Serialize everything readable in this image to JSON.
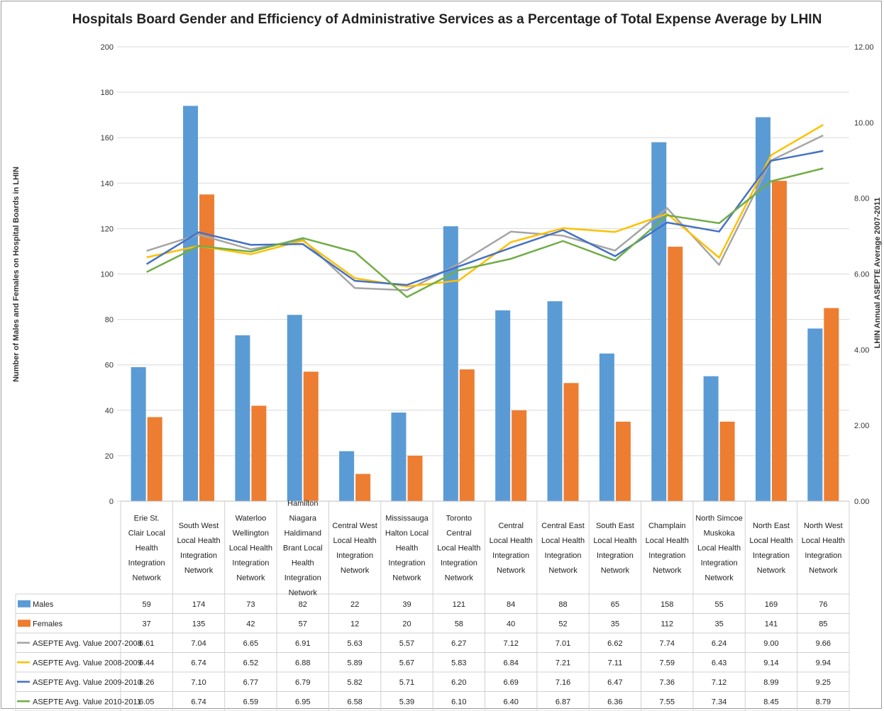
{
  "chart_data": {
    "type": "bar",
    "title": "Hospitals Board Gender and Efficiency of Administrative Services as a Percentage of Total Expense Average by LHIN",
    "ylabel": "Number of Males and Females on Hospital Boards in LHIN",
    "y2label": "LHIN  Annual ASEPTE Average 2007-2011",
    "ylim": [
      0,
      200
    ],
    "yticks": [
      "0",
      "20",
      "40",
      "60",
      "80",
      "100",
      "120",
      "140",
      "160",
      "180",
      "200"
    ],
    "y2lim": [
      0,
      12
    ],
    "y2ticks": [
      "0.00",
      "2.00",
      "4.00",
      "6.00",
      "8.00",
      "10.00",
      "12.00"
    ],
    "grid": true,
    "legend": "data-table",
    "categories": [
      "Erie St. Clair Local Health Integration Network",
      "South West Local Health Integration Network",
      "Waterloo Wellington Local Health Integration Network",
      "Hamilton Niagara Haldimand Brant Local Health Integration Network",
      "Central West Local Health Integration Network",
      "Mississauga Halton Local Health Integration Network",
      "Toronto Central Local Health Integration Network",
      "Central Local Health Integration Network",
      "Central East Local Health Integration Network",
      "South East Local Health Integration Network",
      "Champlain Local Health Integration Network",
      "North Simcoe Muskoka Local Health Integration Network",
      "North East Local Health Integration Network",
      "North West Local Health Integration Network"
    ],
    "bar_series": [
      {
        "name": "Males",
        "color": "#5b9bd5",
        "values": [
          59,
          174,
          73,
          82,
          22,
          39,
          121,
          84,
          88,
          65,
          158,
          55,
          169,
          76
        ],
        "labels": [
          "59",
          "174",
          "73",
          "82",
          "22",
          "39",
          "121",
          "84",
          "88",
          "65",
          "158",
          "55",
          "169",
          "76"
        ]
      },
      {
        "name": "Females",
        "color": "#ed7d31",
        "values": [
          37,
          135,
          42,
          57,
          12,
          20,
          58,
          40,
          52,
          35,
          112,
          35,
          141,
          85
        ],
        "labels": [
          "37",
          "135",
          "42",
          "57",
          "12",
          "20",
          "58",
          "40",
          "52",
          "35",
          "112",
          "35",
          "141",
          "85"
        ]
      }
    ],
    "line_series": [
      {
        "name": "ASEPTE Avg. Value 2007-2008",
        "color": "#a5a5a5",
        "values": [
          6.61,
          7.04,
          6.65,
          6.91,
          5.63,
          5.57,
          6.27,
          7.12,
          7.01,
          6.62,
          7.74,
          6.24,
          9.0,
          9.66
        ],
        "labels": [
          "6.61",
          "7.04",
          "6.65",
          "6.91",
          "5.63",
          "5.57",
          "6.27",
          "7.12",
          "7.01",
          "6.62",
          "7.74",
          "6.24",
          "9.00",
          "9.66"
        ]
      },
      {
        "name": "ASEPTE Avg. Value 2008-2009",
        "color": "#ffc000",
        "values": [
          6.44,
          6.74,
          6.52,
          6.88,
          5.89,
          5.67,
          5.83,
          6.84,
          7.21,
          7.11,
          7.59,
          6.43,
          9.14,
          9.94
        ],
        "labels": [
          "6.44",
          "6.74",
          "6.52",
          "6.88",
          "5.89",
          "5.67",
          "5.83",
          "6.84",
          "7.21",
          "7.11",
          "7.59",
          "6.43",
          "9.14",
          "9.94"
        ]
      },
      {
        "name": "ASEPTE Avg. Value 2009-2010",
        "color": "#4472c4",
        "values": [
          6.26,
          7.1,
          6.77,
          6.79,
          5.82,
          5.71,
          6.2,
          6.69,
          7.16,
          6.47,
          7.36,
          7.12,
          8.99,
          9.25
        ],
        "labels": [
          "6.26",
          "7.10",
          "6.77",
          "6.79",
          "5.82",
          "5.71",
          "6.20",
          "6.69",
          "7.16",
          "6.47",
          "7.36",
          "7.12",
          "8.99",
          "9.25"
        ]
      },
      {
        "name": "ASEPTE Avg. Value 2010-2011",
        "color": "#70ad47",
        "values": [
          6.05,
          6.74,
          6.59,
          6.95,
          6.58,
          5.39,
          6.1,
          6.4,
          6.87,
          6.36,
          7.55,
          7.34,
          8.45,
          8.79
        ],
        "labels": [
          "6.05",
          "6.74",
          "6.59",
          "6.95",
          "6.58",
          "5.39",
          "6.10",
          "6.40",
          "6.87",
          "6.36",
          "7.55",
          "7.34",
          "8.45",
          "8.79"
        ]
      }
    ]
  }
}
